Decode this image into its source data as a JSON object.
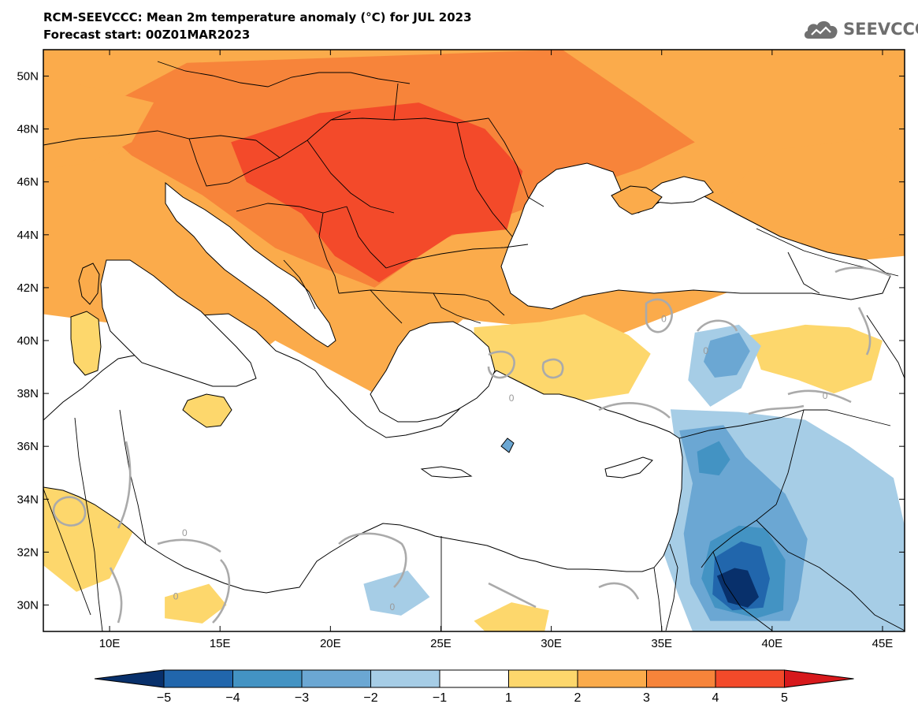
{
  "title": "RCM-SEEVCCC: Mean 2m temperature anomaly (°C) for JUL 2023",
  "subtitle": "Forecast start: 00Z01MAR2023",
  "logo_text": "SEEVCCC",
  "map": {
    "lon_range": [
      7,
      46
    ],
    "lat_range": [
      29,
      51
    ],
    "lat_ticks": [
      {
        "value": 50,
        "label": "50N"
      },
      {
        "value": 48,
        "label": "48N"
      },
      {
        "value": 46,
        "label": "46N"
      },
      {
        "value": 44,
        "label": "44N"
      },
      {
        "value": 42,
        "label": "42N"
      },
      {
        "value": 40,
        "label": "40N"
      },
      {
        "value": 38,
        "label": "38N"
      },
      {
        "value": 36,
        "label": "36N"
      },
      {
        "value": 34,
        "label": "34N"
      },
      {
        "value": 32,
        "label": "32N"
      },
      {
        "value": 30,
        "label": "30N"
      }
    ],
    "lon_ticks": [
      {
        "value": 10,
        "label": "10E"
      },
      {
        "value": 15,
        "label": "15E"
      },
      {
        "value": 20,
        "label": "20E"
      },
      {
        "value": 25,
        "label": "25E"
      },
      {
        "value": 30,
        "label": "30E"
      },
      {
        "value": 35,
        "label": "35E"
      },
      {
        "value": 40,
        "label": "40E"
      },
      {
        "value": 45,
        "label": "45E"
      }
    ],
    "contour_labels": [
      {
        "text": "0",
        "lon": 37.0,
        "lat": 39.5
      },
      {
        "text": "0",
        "lon": 35.1,
        "lat": 40.7
      },
      {
        "text": "0",
        "lon": 42.4,
        "lat": 37.8
      },
      {
        "text": "0",
        "lon": 28.2,
        "lat": 37.7
      },
      {
        "text": "0",
        "lon": 13.4,
        "lat": 32.6
      },
      {
        "text": "0",
        "lon": 13.0,
        "lat": 30.2
      },
      {
        "text": "0",
        "lon": 22.8,
        "lat": 29.8
      }
    ]
  },
  "colorbar": {
    "levels": [
      "−5",
      "−4",
      "−3",
      "−2",
      "−1",
      "1",
      "2",
      "3",
      "4",
      "5"
    ],
    "colors": [
      "#08306b",
      "#2166ac",
      "#4393c3",
      "#6ba7d3",
      "#a6cde6",
      "#ffffff",
      "#fdd76c",
      "#fbab4b",
      "#f7843a",
      "#f34a2a",
      "#d7191c"
    ]
  },
  "anomaly_fields": [
    {
      "value": 4,
      "level_color": "#f7843a",
      "points": [
        [
          13.5,
          50.5
        ],
        [
          30.5,
          51
        ],
        [
          34,
          49
        ],
        [
          36.5,
          47.5
        ],
        [
          34,
          46.5
        ],
        [
          29.5,
          45.2
        ],
        [
          25,
          43.8
        ],
        [
          22,
          42
        ],
        [
          19.5,
          42.8
        ],
        [
          17.5,
          43.5
        ],
        [
          14.2,
          45.5
        ],
        [
          11,
          47
        ],
        [
          9,
          48.5
        ]
      ]
    },
    {
      "value": 5,
      "level_color": "#f34a2a",
      "points": [
        [
          15.5,
          47.5
        ],
        [
          19.5,
          48.6
        ],
        [
          24,
          49
        ],
        [
          27,
          48
        ],
        [
          28.7,
          46.4
        ],
        [
          28,
          44.2
        ],
        [
          25.5,
          44
        ],
        [
          22.2,
          42.2
        ],
        [
          20.2,
          43.2
        ],
        [
          18.7,
          44.8
        ],
        [
          16.2,
          46
        ]
      ]
    },
    {
      "value": 2,
      "level_color": "#fbab4b",
      "points": [
        [
          7,
          50
        ],
        [
          12,
          49
        ],
        [
          11,
          47.5
        ],
        [
          9,
          46.7
        ],
        [
          7,
          46.5
        ]
      ]
    },
    {
      "value": 2,
      "level_color": "#fbab4b",
      "points": [
        [
          37.5,
          44.8
        ],
        [
          39,
          46.5
        ],
        [
          40,
          47.2
        ],
        [
          44,
          47.6
        ],
        [
          46,
          46.5
        ],
        [
          46,
          44
        ],
        [
          43,
          43.5
        ],
        [
          40.5,
          43.8
        ]
      ]
    },
    {
      "value": 1,
      "level_color": "#fdd76c",
      "points": [
        [
          26.5,
          40.5
        ],
        [
          29.5,
          40.7
        ],
        [
          31.5,
          41
        ],
        [
          33.5,
          40.2
        ],
        [
          34.5,
          39.5
        ],
        [
          33.5,
          38
        ],
        [
          31.2,
          37.7
        ],
        [
          28.2,
          37.9
        ],
        [
          26.5,
          38.5
        ]
      ]
    },
    {
      "value": 1,
      "level_color": "#fdd76c",
      "points": [
        [
          39,
          40.2
        ],
        [
          41.5,
          40.6
        ],
        [
          43.5,
          40.5
        ],
        [
          45,
          40
        ],
        [
          44.5,
          38.5
        ],
        [
          42.8,
          38
        ],
        [
          41.2,
          38.5
        ],
        [
          39.5,
          38.9
        ]
      ]
    },
    {
      "value": 1,
      "level_color": "#fdd76c",
      "points": [
        [
          7,
          36.7
        ],
        [
          9.5,
          36.2
        ],
        [
          10.2,
          34.5
        ],
        [
          11.2,
          33
        ],
        [
          10,
          31
        ],
        [
          8.5,
          30.5
        ],
        [
          7,
          31.5
        ]
      ]
    },
    {
      "value": 1,
      "level_color": "#fdd76c",
      "points": [
        [
          12.5,
          30.3
        ],
        [
          14.5,
          30.8
        ],
        [
          15.3,
          30
        ],
        [
          14.2,
          29.3
        ],
        [
          12.5,
          29.5
        ]
      ]
    },
    {
      "value": 1,
      "level_color": "#fdd76c",
      "points": [
        [
          26.5,
          29.4
        ],
        [
          28.2,
          30.1
        ],
        [
          29.9,
          29.8
        ],
        [
          29.7,
          29
        ],
        [
          27,
          29
        ]
      ]
    },
    {
      "value": -1,
      "level_color": "#a6cde6",
      "points": [
        [
          36.5,
          40.3
        ],
        [
          38.5,
          40.6
        ],
        [
          39.5,
          39.8
        ],
        [
          38.6,
          38.2
        ],
        [
          37.2,
          37.5
        ],
        [
          36.2,
          38.5
        ]
      ]
    },
    {
      "value": -1,
      "level_color": "#a6cde6",
      "points": [
        [
          35.4,
          37.4
        ],
        [
          38.5,
          37.3
        ],
        [
          41.5,
          37
        ],
        [
          43.5,
          36
        ],
        [
          45.5,
          34.8
        ],
        [
          46,
          33
        ],
        [
          46,
          29
        ],
        [
          36.4,
          29
        ],
        [
          35.7,
          30.5
        ],
        [
          34.9,
          32.4
        ],
        [
          35.3,
          34.5
        ],
        [
          35.6,
          36.2
        ]
      ]
    },
    {
      "value": -1,
      "level_color": "#a6cde6",
      "points": [
        [
          21.5,
          30.8
        ],
        [
          23.5,
          31.3
        ],
        [
          24.5,
          30.3
        ],
        [
          23.2,
          29.6
        ],
        [
          21.8,
          29.8
        ]
      ]
    },
    {
      "value": -2,
      "level_color": "#6ba7d3",
      "points": [
        [
          35.8,
          36.6
        ],
        [
          37.8,
          36.8
        ],
        [
          38.8,
          35.6
        ],
        [
          40.6,
          34.2
        ],
        [
          41.6,
          32.5
        ],
        [
          41.2,
          30.2
        ],
        [
          40.8,
          29.4
        ],
        [
          37.2,
          29.4
        ],
        [
          36.3,
          30.8
        ],
        [
          36,
          32.7
        ],
        [
          36.4,
          34.6
        ]
      ]
    },
    {
      "value": -2,
      "level_color": "#6ba7d3",
      "points": [
        [
          37.2,
          40
        ],
        [
          38.5,
          40.3
        ],
        [
          39,
          39.6
        ],
        [
          38.4,
          38.7
        ],
        [
          37.4,
          38.6
        ],
        [
          36.9,
          39.2
        ]
      ]
    },
    {
      "value": -3,
      "level_color": "#4393c3",
      "points": [
        [
          37.2,
          32.4
        ],
        [
          38.5,
          33
        ],
        [
          39.7,
          32.9
        ],
        [
          40.6,
          31.7
        ],
        [
          40.5,
          29.8
        ],
        [
          39.3,
          29.5
        ],
        [
          37.4,
          29.9
        ],
        [
          36.8,
          31
        ]
      ]
    },
    {
      "value": -3,
      "level_color": "#4393c3",
      "points": [
        [
          36.6,
          35.8
        ],
        [
          37.6,
          36.2
        ],
        [
          38.1,
          35.5
        ],
        [
          37.6,
          34.9
        ],
        [
          36.7,
          35
        ]
      ]
    },
    {
      "value": -4,
      "level_color": "#2166ac",
      "points": [
        [
          37.4,
          31.8
        ],
        [
          38.6,
          32.4
        ],
        [
          39.5,
          32.2
        ],
        [
          39.9,
          31
        ],
        [
          39.6,
          29.9
        ],
        [
          38.2,
          29.8
        ],
        [
          37.3,
          30.4
        ]
      ]
    },
    {
      "value": -5,
      "level_color": "#08306b",
      "points": [
        [
          37.5,
          31.1
        ],
        [
          38.3,
          31.4
        ],
        [
          38.9,
          31.3
        ],
        [
          39.4,
          30.3
        ],
        [
          38.9,
          29.9
        ],
        [
          38,
          30.1
        ]
      ]
    }
  ]
}
